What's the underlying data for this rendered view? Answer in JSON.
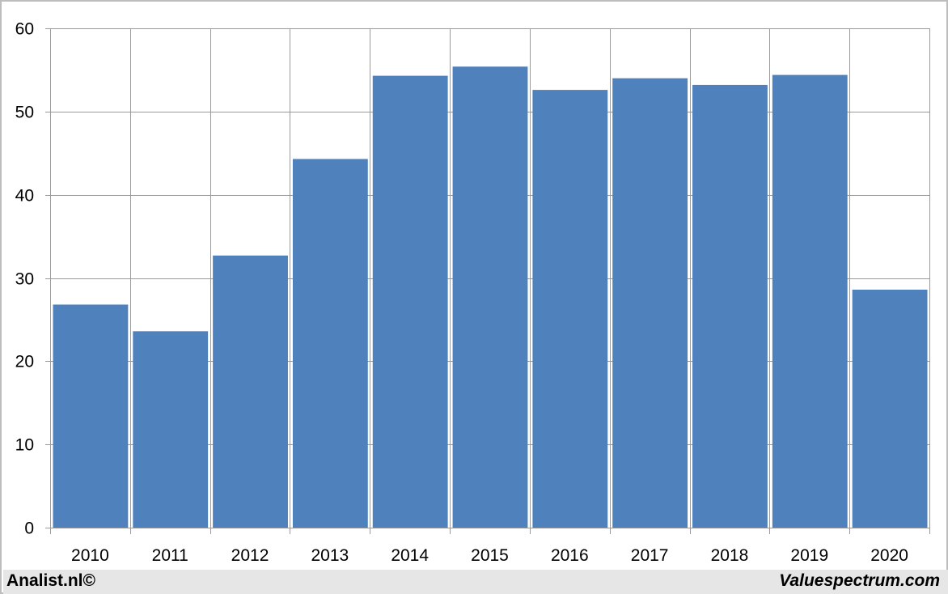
{
  "chart_data": {
    "type": "bar",
    "categories": [
      "2010",
      "2011",
      "2012",
      "2013",
      "2014",
      "2015",
      "2016",
      "2017",
      "2018",
      "2019",
      "2020"
    ],
    "values": [
      26.8,
      23.6,
      32.7,
      44.3,
      54.3,
      55.4,
      52.6,
      54.0,
      53.2,
      54.4,
      28.6
    ],
    "ylim": [
      0,
      60
    ],
    "yticks": [
      0,
      10,
      20,
      30,
      40,
      50,
      60
    ],
    "grid": true,
    "title": "",
    "xlabel": "",
    "ylabel": "",
    "bar_color": "#4f81bd",
    "grid_color": "#9a9a9a"
  },
  "footer": {
    "left_text": "Analist.nl©",
    "right_text": "Valuespectrum.com",
    "background": "#e6e6e6"
  }
}
